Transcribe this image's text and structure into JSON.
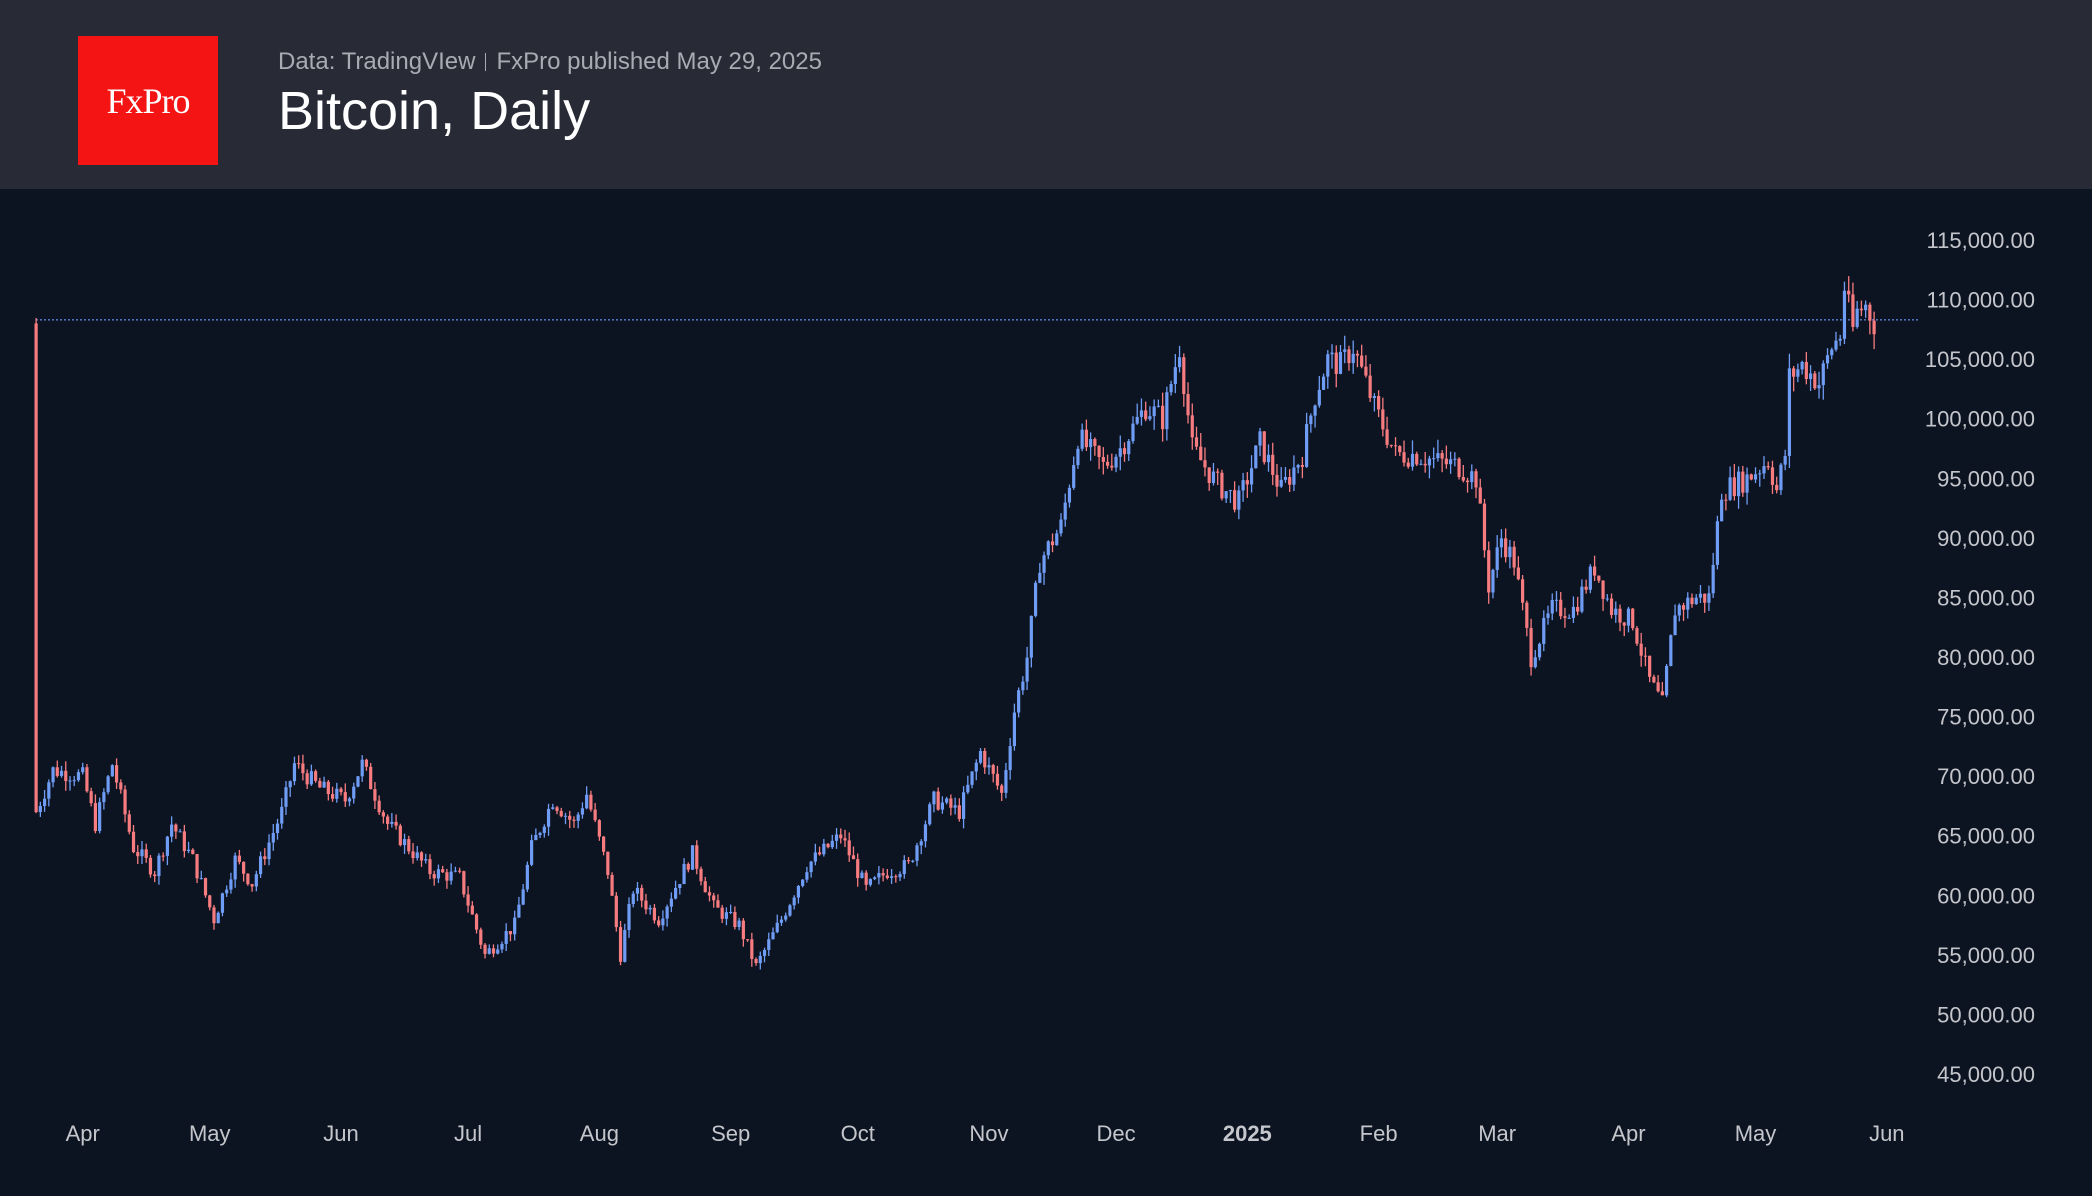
{
  "header": {
    "logo_text": "FxPro",
    "source": "Data: TradingVIew",
    "published": "FxPro published May 29, 2025",
    "title": "Bitcoin, Daily"
  },
  "colors": {
    "up": "#6f9cf5",
    "down": "#f77c80",
    "level_line": "#5b7fd6"
  },
  "chart_data": {
    "type": "candlestick",
    "title": "Bitcoin, Daily",
    "ylim": [
      45000,
      115000
    ],
    "y_ticks": [
      "115,000.00",
      "110,000.00",
      "105,000.00",
      "100,000.00",
      "95,000.00",
      "90,000.00",
      "85,000.00",
      "80,000.00",
      "75,000.00",
      "70,000.00",
      "65,000.00",
      "60,000.00",
      "55,000.00",
      "50,000.00",
      "45,000.00"
    ],
    "y_tick_values": [
      115000,
      110000,
      105000,
      100000,
      95000,
      90000,
      85000,
      80000,
      75000,
      70000,
      65000,
      60000,
      55000,
      50000,
      45000
    ],
    "x_ticks": [
      {
        "label": "Apr",
        "day": 0
      },
      {
        "label": "May",
        "day": 30
      },
      {
        "label": "Jun",
        "day": 61
      },
      {
        "label": "Jul",
        "day": 91
      },
      {
        "label": "Aug",
        "day": 122
      },
      {
        "label": "Sep",
        "day": 153
      },
      {
        "label": "Oct",
        "day": 183
      },
      {
        "label": "Nov",
        "day": 214
      },
      {
        "label": "Dec",
        "day": 244
      },
      {
        "label": "2025",
        "day": 275,
        "bold": true
      },
      {
        "label": "Feb",
        "day": 306
      },
      {
        "label": "Mar",
        "day": 334
      },
      {
        "label": "Apr",
        "day": 365
      },
      {
        "label": "May",
        "day": 395
      },
      {
        "label": "Jun",
        "day": 426
      }
    ],
    "x_unit": "days since 2024-04-01",
    "resistance_level": 108300,
    "close_anchors": [
      [
        -11,
        67000
      ],
      [
        -7,
        70500
      ],
      [
        0,
        70000
      ],
      [
        3,
        66000
      ],
      [
        7,
        71000
      ],
      [
        12,
        64000
      ],
      [
        17,
        62000
      ],
      [
        21,
        66000
      ],
      [
        26,
        63000
      ],
      [
        31,
        58000
      ],
      [
        36,
        63000
      ],
      [
        40,
        61000
      ],
      [
        47,
        67000
      ],
      [
        50,
        71000
      ],
      [
        56,
        69000
      ],
      [
        62,
        68000
      ],
      [
        66,
        71000
      ],
      [
        72,
        66000
      ],
      [
        82,
        62000
      ],
      [
        89,
        61500
      ],
      [
        95,
        55000
      ],
      [
        102,
        57500
      ],
      [
        106,
        64000
      ],
      [
        111,
        68000
      ],
      [
        116,
        66000
      ],
      [
        119,
        68500
      ],
      [
        124,
        62000
      ],
      [
        127,
        55000
      ],
      [
        130,
        60500
      ],
      [
        136,
        58000
      ],
      [
        144,
        63500
      ],
      [
        149,
        59000
      ],
      [
        155,
        57500
      ],
      [
        159,
        54000
      ],
      [
        165,
        58000
      ],
      [
        171,
        62500
      ],
      [
        179,
        65000
      ],
      [
        185,
        60500
      ],
      [
        190,
        62000
      ],
      [
        195,
        62500
      ],
      [
        201,
        68000
      ],
      [
        207,
        67000
      ],
      [
        212,
        72000
      ],
      [
        217,
        68500
      ],
      [
        220,
        75500
      ],
      [
        223,
        80000
      ],
      [
        226,
        88000
      ],
      [
        231,
        91000
      ],
      [
        235,
        98500
      ],
      [
        241,
        96000
      ],
      [
        245,
        97500
      ],
      [
        251,
        101000
      ],
      [
        255,
        100000
      ],
      [
        259,
        106000
      ],
      [
        262,
        97500
      ],
      [
        268,
        94500
      ],
      [
        273,
        93000
      ],
      [
        278,
        98000
      ],
      [
        283,
        94000
      ],
      [
        288,
        97000
      ],
      [
        291,
        102000
      ],
      [
        294,
        105000
      ],
      [
        297,
        104500
      ],
      [
        300,
        106000
      ],
      [
        305,
        101000
      ],
      [
        310,
        97000
      ],
      [
        315,
        97000
      ],
      [
        319,
        96500
      ],
      [
        325,
        96000
      ],
      [
        329,
        95000
      ],
      [
        332,
        86000
      ],
      [
        335,
        90000
      ],
      [
        338,
        88000
      ],
      [
        342,
        80000
      ],
      [
        347,
        84000
      ],
      [
        352,
        84000
      ],
      [
        357,
        87500
      ],
      [
        361,
        84000
      ],
      [
        366,
        83000
      ],
      [
        370,
        78000
      ],
      [
        373,
        76000
      ],
      [
        376,
        84000
      ],
      [
        381,
        85000
      ],
      [
        384,
        85000
      ],
      [
        387,
        94000
      ],
      [
        393,
        95000
      ],
      [
        398,
        96500
      ],
      [
        400,
        94000
      ],
      [
        402,
        97000
      ],
      [
        403,
        103500
      ],
      [
        406,
        104500
      ],
      [
        410,
        103000
      ],
      [
        413,
        106000
      ],
      [
        415,
        107000
      ],
      [
        416,
        111000
      ],
      [
        418,
        107500
      ],
      [
        419,
        109000
      ],
      [
        421,
        109500
      ],
      [
        423,
        108000
      ]
    ]
  }
}
